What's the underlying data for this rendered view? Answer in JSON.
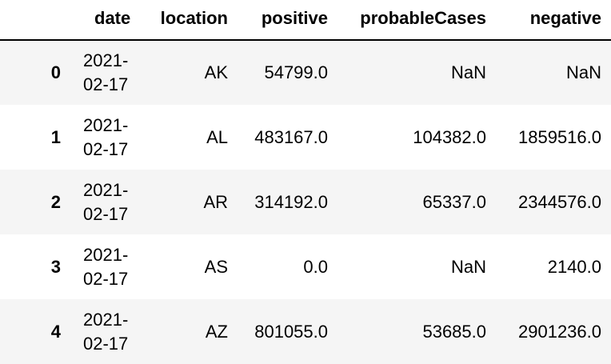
{
  "table": {
    "columns": {
      "index": "",
      "date": "date",
      "location": "location",
      "positive": "positive",
      "probableCases": "probableCases",
      "negative": "negative"
    },
    "rows": [
      {
        "index": "0",
        "date_part1": "2021-",
        "date_part2": "02-17",
        "location": "AK",
        "positive": "54799.0",
        "probableCases": "NaN",
        "negative": "NaN"
      },
      {
        "index": "1",
        "date_part1": "2021-",
        "date_part2": "02-17",
        "location": "AL",
        "positive": "483167.0",
        "probableCases": "104382.0",
        "negative": "1859516.0"
      },
      {
        "index": "2",
        "date_part1": "2021-",
        "date_part2": "02-17",
        "location": "AR",
        "positive": "314192.0",
        "probableCases": "65337.0",
        "negative": "2344576.0"
      },
      {
        "index": "3",
        "date_part1": "2021-",
        "date_part2": "02-17",
        "location": "AS",
        "positive": "0.0",
        "probableCases": "NaN",
        "negative": "2140.0"
      },
      {
        "index": "4",
        "date_part1": "2021-",
        "date_part2": "02-17",
        "location": "AZ",
        "positive": "801055.0",
        "probableCases": "53685.0",
        "negative": "2901236.0"
      }
    ]
  }
}
